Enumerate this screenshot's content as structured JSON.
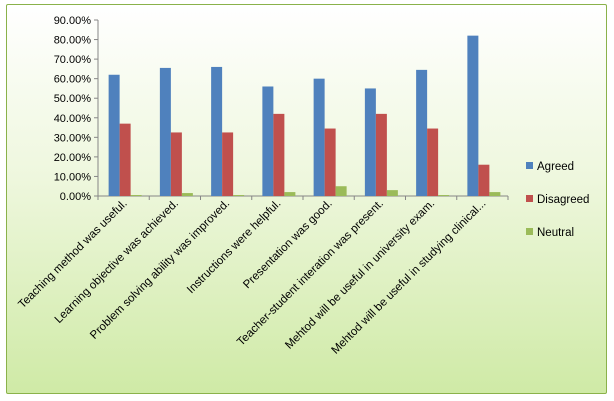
{
  "colors": {
    "background_top": "#ffffff",
    "background_bottom": "#cfeaa6",
    "border": "#8ab24a"
  },
  "chart_data": {
    "type": "bar",
    "categories": [
      "Teaching method was useful.",
      "Learning objective was achieved.",
      "Problem solving ability was improved.",
      "Instructions were helpful.",
      "Presentation was good.",
      "Teacher-student interation was present.",
      "Mehtod will be useful in university exam.",
      "Mehtod will be useful in studying clinical..."
    ],
    "series": [
      {
        "name": "Agreed",
        "color": "#4f81bd",
        "values": [
          62,
          65.5,
          66,
          56,
          60,
          55,
          64.5,
          82
        ]
      },
      {
        "name": "Disagreed",
        "color": "#c0504d",
        "values": [
          37,
          32.5,
          32.5,
          42,
          34.5,
          42,
          34.5,
          16
        ]
      },
      {
        "name": "Neutral",
        "color": "#9bbb59",
        "values": [
          0.5,
          1.5,
          0.5,
          2,
          5,
          3,
          0.5,
          2
        ]
      }
    ],
    "yticks": [
      "0.00%",
      "10.00%",
      "20.00%",
      "30.00%",
      "40.00%",
      "50.00%",
      "60.00%",
      "70.00%",
      "80.00%",
      "90.00%"
    ],
    "ylim": [
      0,
      90
    ],
    "grid": false,
    "legend": "right"
  }
}
